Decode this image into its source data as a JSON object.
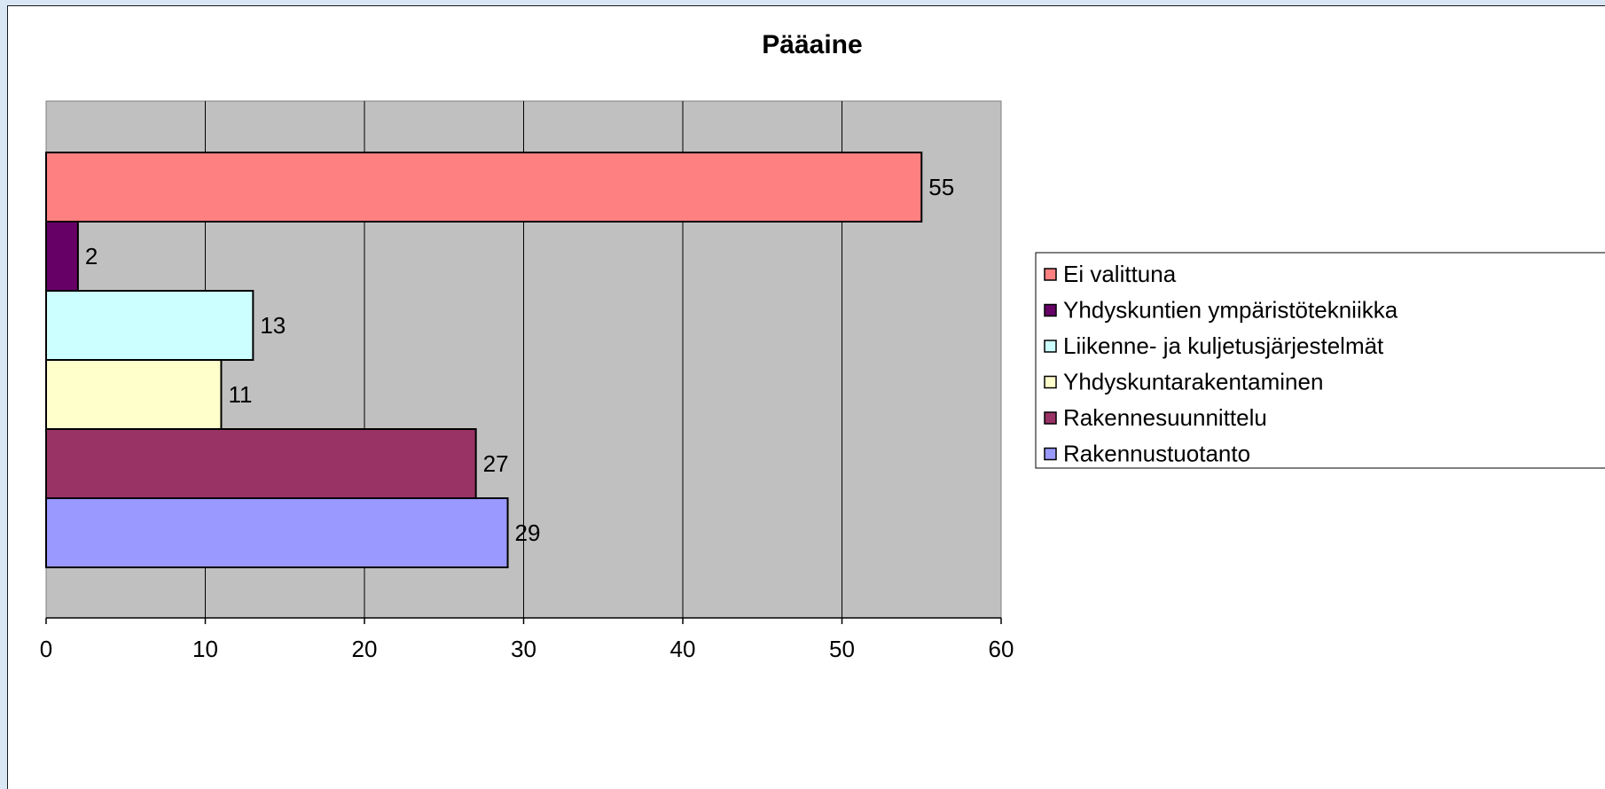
{
  "chart_data": {
    "type": "bar",
    "orientation": "horizontal",
    "title": "Pääaine",
    "xlabel": "",
    "ylabel": "",
    "xlim": [
      0,
      60
    ],
    "x_ticks": [
      "0",
      "10",
      "20",
      "30",
      "40",
      "50",
      "60"
    ],
    "grid": true,
    "plot_background": "#c0c0c0",
    "legend_position": "right",
    "series": [
      {
        "name": "Ei valittuna",
        "value": 55,
        "color": "#ff8080"
      },
      {
        "name": "Yhdyskuntien ympäristötekniikka",
        "value": 2,
        "color": "#660066"
      },
      {
        "name": "Liikenne- ja kuljetusjärjestelmät",
        "value": 13,
        "color": "#ccffff"
      },
      {
        "name": "Yhdyskuntarakentaminen",
        "value": 11,
        "color": "#ffffcc"
      },
      {
        "name": "Rakennesuunnittelu",
        "value": 27,
        "color": "#993366"
      },
      {
        "name": "Rakennustuotanto",
        "value": 29,
        "color": "#9999ff"
      }
    ]
  }
}
